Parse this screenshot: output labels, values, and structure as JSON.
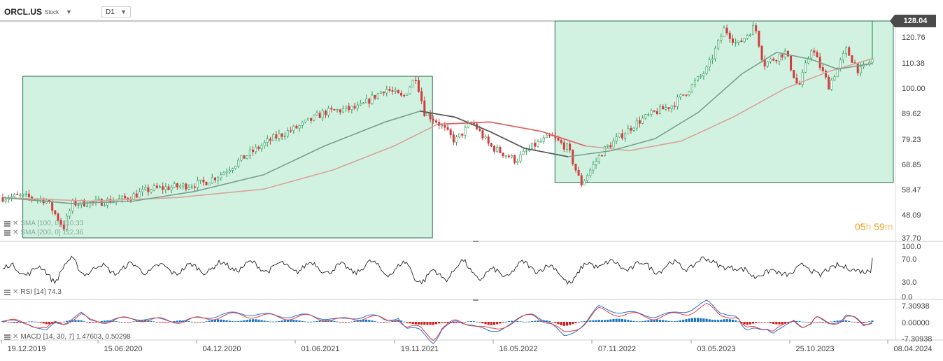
{
  "toolbar": {
    "symbol": "ORCL.US",
    "symbol_type": "Stock",
    "timeframe": "D1"
  },
  "price_panel": {
    "last_price": "128.04",
    "y_ticks": [
      "120.76",
      "110.38",
      "100.00",
      "89.62",
      "79.23",
      "68.85",
      "58.47",
      "48.09",
      "37.70"
    ],
    "indicators": [
      {
        "text": "SMA [100, 0] 110.33",
        "color": "#7a9e8e"
      },
      {
        "text": "SMA [200, 0] 112.36",
        "color": "#d8a49a"
      }
    ],
    "timer": {
      "hours": "05",
      "h": "h",
      "minutes": "59",
      "m": "m"
    },
    "colors": {
      "up": "#2e9e5b",
      "down": "#d23c3c",
      "zone_fill": "#c9f0dc",
      "zone_border": "#2b6f52",
      "sma100": "#7a9e8e",
      "sma200": "#d8a49a",
      "sma_dark": "#555555",
      "sma_red": "#e06060"
    }
  },
  "rsi_panel": {
    "label": "RSI [14] 74.3",
    "y_ticks": [
      "100.0",
      "70.0",
      "30.0",
      "0.0"
    ]
  },
  "macd_panel": {
    "label": "MACD [14, 30, 7] 1.47603, 0.50298",
    "y_ticks": [
      "7.30938",
      "0.00000",
      "-7.30938"
    ]
  },
  "x_axis": {
    "labels": [
      "19.12.2019",
      "15.06.2020",
      "04.12.2020",
      "01.06.2021",
      "19.11.2021",
      "16.05.2022",
      "07.11.2022",
      "03.05.2023",
      "25.10.2023",
      "08.04.2024"
    ]
  },
  "chart_data": {
    "type": "candlestick",
    "y_range": [
      37.7,
      128.04
    ],
    "price_path": [
      [
        0.0,
        54.5
      ],
      [
        0.02,
        55.0
      ],
      [
        0.05,
        53.5
      ],
      [
        0.07,
        42.0
      ],
      [
        0.08,
        52.0
      ],
      [
        0.11,
        52.5
      ],
      [
        0.14,
        54.0
      ],
      [
        0.17,
        58.0
      ],
      [
        0.2,
        59.0
      ],
      [
        0.23,
        60.5
      ],
      [
        0.25,
        64.0
      ],
      [
        0.28,
        72.0
      ],
      [
        0.31,
        79.0
      ],
      [
        0.34,
        84.0
      ],
      [
        0.37,
        90.0
      ],
      [
        0.41,
        92.0
      ],
      [
        0.44,
        100.0
      ],
      [
        0.46,
        96.0
      ],
      [
        0.475,
        105.0
      ],
      [
        0.485,
        90.0
      ],
      [
        0.5,
        86.0
      ],
      [
        0.52,
        78.0
      ],
      [
        0.54,
        86.0
      ],
      [
        0.56,
        76.0
      ],
      [
        0.59,
        70.0
      ],
      [
        0.61,
        76.0
      ],
      [
        0.63,
        80.0
      ],
      [
        0.65,
        75.0
      ],
      [
        0.665,
        60.0
      ],
      [
        0.69,
        74.0
      ],
      [
        0.71,
        80.0
      ],
      [
        0.73,
        86.0
      ],
      [
        0.75,
        90.0
      ],
      [
        0.77,
        93.0
      ],
      [
        0.79,
        100.0
      ],
      [
        0.81,
        108.0
      ],
      [
        0.83,
        125.0
      ],
      [
        0.845,
        118.0
      ],
      [
        0.865,
        126.0
      ],
      [
        0.875,
        110.0
      ],
      [
        0.9,
        115.0
      ],
      [
        0.915,
        100.0
      ],
      [
        0.93,
        117.0
      ],
      [
        0.95,
        101.0
      ],
      [
        0.97,
        116.0
      ],
      [
        0.985,
        107.0
      ],
      [
        1.0,
        112.0
      ],
      [
        1.0,
        128.04
      ]
    ],
    "sma100_path": [
      [
        0.0,
        54.5
      ],
      [
        0.08,
        52.0
      ],
      [
        0.15,
        53.0
      ],
      [
        0.22,
        57.0
      ],
      [
        0.3,
        64.0
      ],
      [
        0.37,
        76.0
      ],
      [
        0.44,
        86.0
      ],
      [
        0.48,
        90.5
      ],
      [
        0.52,
        88.0
      ],
      [
        0.56,
        82.0
      ],
      [
        0.6,
        75.0
      ],
      [
        0.65,
        71.5
      ],
      [
        0.7,
        74.0
      ],
      [
        0.75,
        79.0
      ],
      [
        0.8,
        90.0
      ],
      [
        0.85,
        106.0
      ],
      [
        0.89,
        115.0
      ],
      [
        0.93,
        112.0
      ],
      [
        0.96,
        108.0
      ],
      [
        1.0,
        110.33
      ]
    ],
    "sma200_path": [
      [
        0.0,
        54.5
      ],
      [
        0.1,
        53.0
      ],
      [
        0.2,
        54.5
      ],
      [
        0.3,
        58.0
      ],
      [
        0.38,
        66.0
      ],
      [
        0.45,
        76.0
      ],
      [
        0.5,
        85.0
      ],
      [
        0.56,
        86.0
      ],
      [
        0.62,
        82.0
      ],
      [
        0.67,
        76.0
      ],
      [
        0.72,
        74.0
      ],
      [
        0.78,
        78.0
      ],
      [
        0.84,
        88.0
      ],
      [
        0.9,
        100.0
      ],
      [
        0.95,
        107.0
      ],
      [
        1.0,
        112.36
      ]
    ],
    "zones": [
      {
        "x_from": 0.023,
        "x_to": 0.47,
        "y_from": 37.7,
        "y_to": 105.0
      },
      {
        "x_from": 0.635,
        "x_to": 1.0,
        "y_from": 60.8,
        "y_to": 128.04
      }
    ],
    "rsi_series_last": 74.3,
    "rsi_levels": [
      70,
      30
    ],
    "macd_last": 1.47603,
    "macd_signal_last": 0.50298,
    "macd_range": [
      -7.30938,
      7.30938
    ]
  }
}
